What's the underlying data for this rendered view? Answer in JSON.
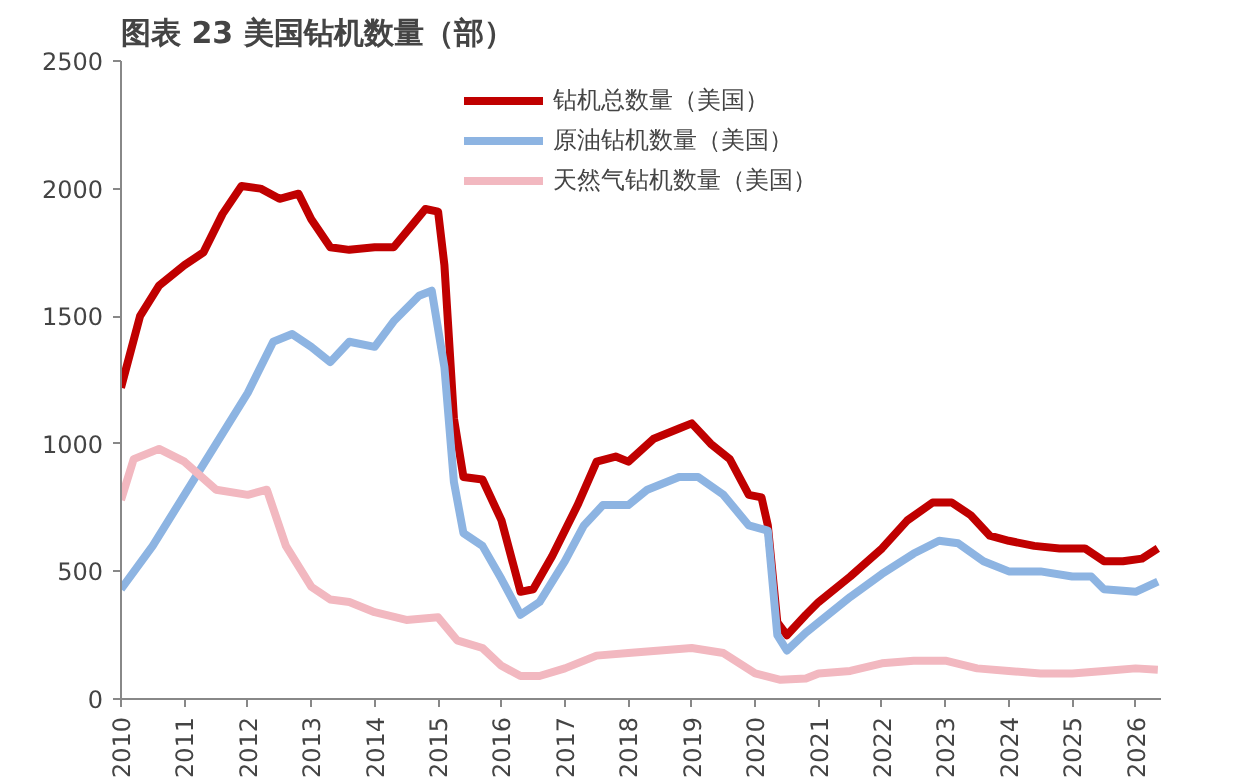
{
  "chart_data": {
    "type": "line",
    "title": "图表 23 美国钻机数量（部）",
    "xlim": [
      2010,
      2026.4
    ],
    "xticks": [
      2010,
      2011,
      2012,
      2013,
      2014,
      2015,
      2016,
      2017,
      2018,
      2019,
      2020,
      2021,
      2022,
      2023,
      2024,
      2025,
      2026
    ],
    "ylim": [
      0,
      2500
    ],
    "yticks": [
      0,
      500,
      1000,
      1500,
      2000,
      2500
    ],
    "grid": false,
    "legend": "top",
    "line_style": "solid",
    "marker": "none",
    "series": [
      {
        "name": "钻机总数量（美国）",
        "color": "#c00000",
        "x": [
          2010.0,
          2010.3,
          2010.6,
          2011.0,
          2011.3,
          2011.6,
          2011.9,
          2012.2,
          2012.5,
          2012.8,
          2013.0,
          2013.3,
          2013.6,
          2014.0,
          2014.3,
          2014.6,
          2014.8,
          2015.0,
          2015.1,
          2015.25,
          2015.4,
          2015.7,
          2016.0,
          2016.3,
          2016.5,
          2016.8,
          2017.2,
          2017.5,
          2017.8,
          2018.0,
          2018.4,
          2018.8,
          2019.0,
          2019.3,
          2019.6,
          2019.9,
          2020.1,
          2020.2,
          2020.35,
          2020.5,
          2020.8,
          2021.0,
          2021.5,
          2022.0,
          2022.4,
          2022.8,
          2023.1,
          2023.4,
          2023.7,
          2024.0,
          2024.4,
          2024.8,
          2025.2,
          2025.5,
          2025.8,
          2026.1,
          2026.35
        ],
        "values": [
          1220,
          1500,
          1620,
          1700,
          1750,
          1900,
          2010,
          2000,
          1960,
          1980,
          1880,
          1770,
          1760,
          1770,
          1770,
          1860,
          1920,
          1910,
          1700,
          1100,
          870,
          860,
          700,
          420,
          430,
          560,
          760,
          930,
          950,
          930,
          1020,
          1060,
          1080,
          1000,
          940,
          800,
          790,
          680,
          300,
          250,
          330,
          380,
          480,
          590,
          700,
          770,
          770,
          720,
          640,
          620,
          600,
          590,
          590,
          540,
          540,
          550,
          590
        ]
      },
      {
        "name": "原油钻机数量（美国）",
        "color": "#8db4e2",
        "x": [
          2010.0,
          2010.5,
          2011.0,
          2011.5,
          2012.0,
          2012.4,
          2012.7,
          2013.0,
          2013.3,
          2013.6,
          2014.0,
          2014.3,
          2014.7,
          2014.9,
          2015.1,
          2015.25,
          2015.4,
          2015.7,
          2016.0,
          2016.3,
          2016.6,
          2017.0,
          2017.3,
          2017.6,
          2018.0,
          2018.3,
          2018.8,
          2019.1,
          2019.5,
          2019.9,
          2020.2,
          2020.35,
          2020.5,
          2020.8,
          2021.0,
          2021.5,
          2022.0,
          2022.5,
          2022.9,
          2023.2,
          2023.6,
          2024.0,
          2024.5,
          2025.0,
          2025.3,
          2025.5,
          2026.0,
          2026.35
        ],
        "values": [
          430,
          600,
          800,
          1000,
          1200,
          1400,
          1430,
          1380,
          1320,
          1400,
          1380,
          1480,
          1580,
          1600,
          1300,
          850,
          650,
          600,
          470,
          330,
          380,
          540,
          680,
          760,
          760,
          820,
          870,
          870,
          800,
          680,
          660,
          250,
          190,
          260,
          300,
          400,
          490,
          570,
          620,
          610,
          540,
          500,
          500,
          480,
          480,
          430,
          420,
          460
        ]
      },
      {
        "name": "天然气钻机数量（美国）",
        "color": "#f2b8c0",
        "x": [
          2010.0,
          2010.2,
          2010.6,
          2011.0,
          2011.5,
          2012.0,
          2012.3,
          2012.6,
          2013.0,
          2013.3,
          2013.6,
          2014.0,
          2014.5,
          2015.0,
          2015.3,
          2015.7,
          2016.0,
          2016.3,
          2016.6,
          2017.0,
          2017.5,
          2018.0,
          2018.5,
          2019.0,
          2019.5,
          2020.0,
          2020.4,
          2020.8,
          2021.0,
          2021.5,
          2022.0,
          2022.5,
          2023.0,
          2023.5,
          2024.0,
          2024.5,
          2025.0,
          2025.5,
          2026.0,
          2026.35
        ],
        "values": [
          780,
          940,
          980,
          930,
          820,
          800,
          820,
          600,
          440,
          390,
          380,
          340,
          310,
          320,
          230,
          200,
          130,
          90,
          90,
          120,
          170,
          180,
          190,
          200,
          180,
          100,
          75,
          80,
          100,
          110,
          140,
          150,
          150,
          120,
          110,
          100,
          100,
          110,
          120,
          115
        ]
      }
    ]
  }
}
